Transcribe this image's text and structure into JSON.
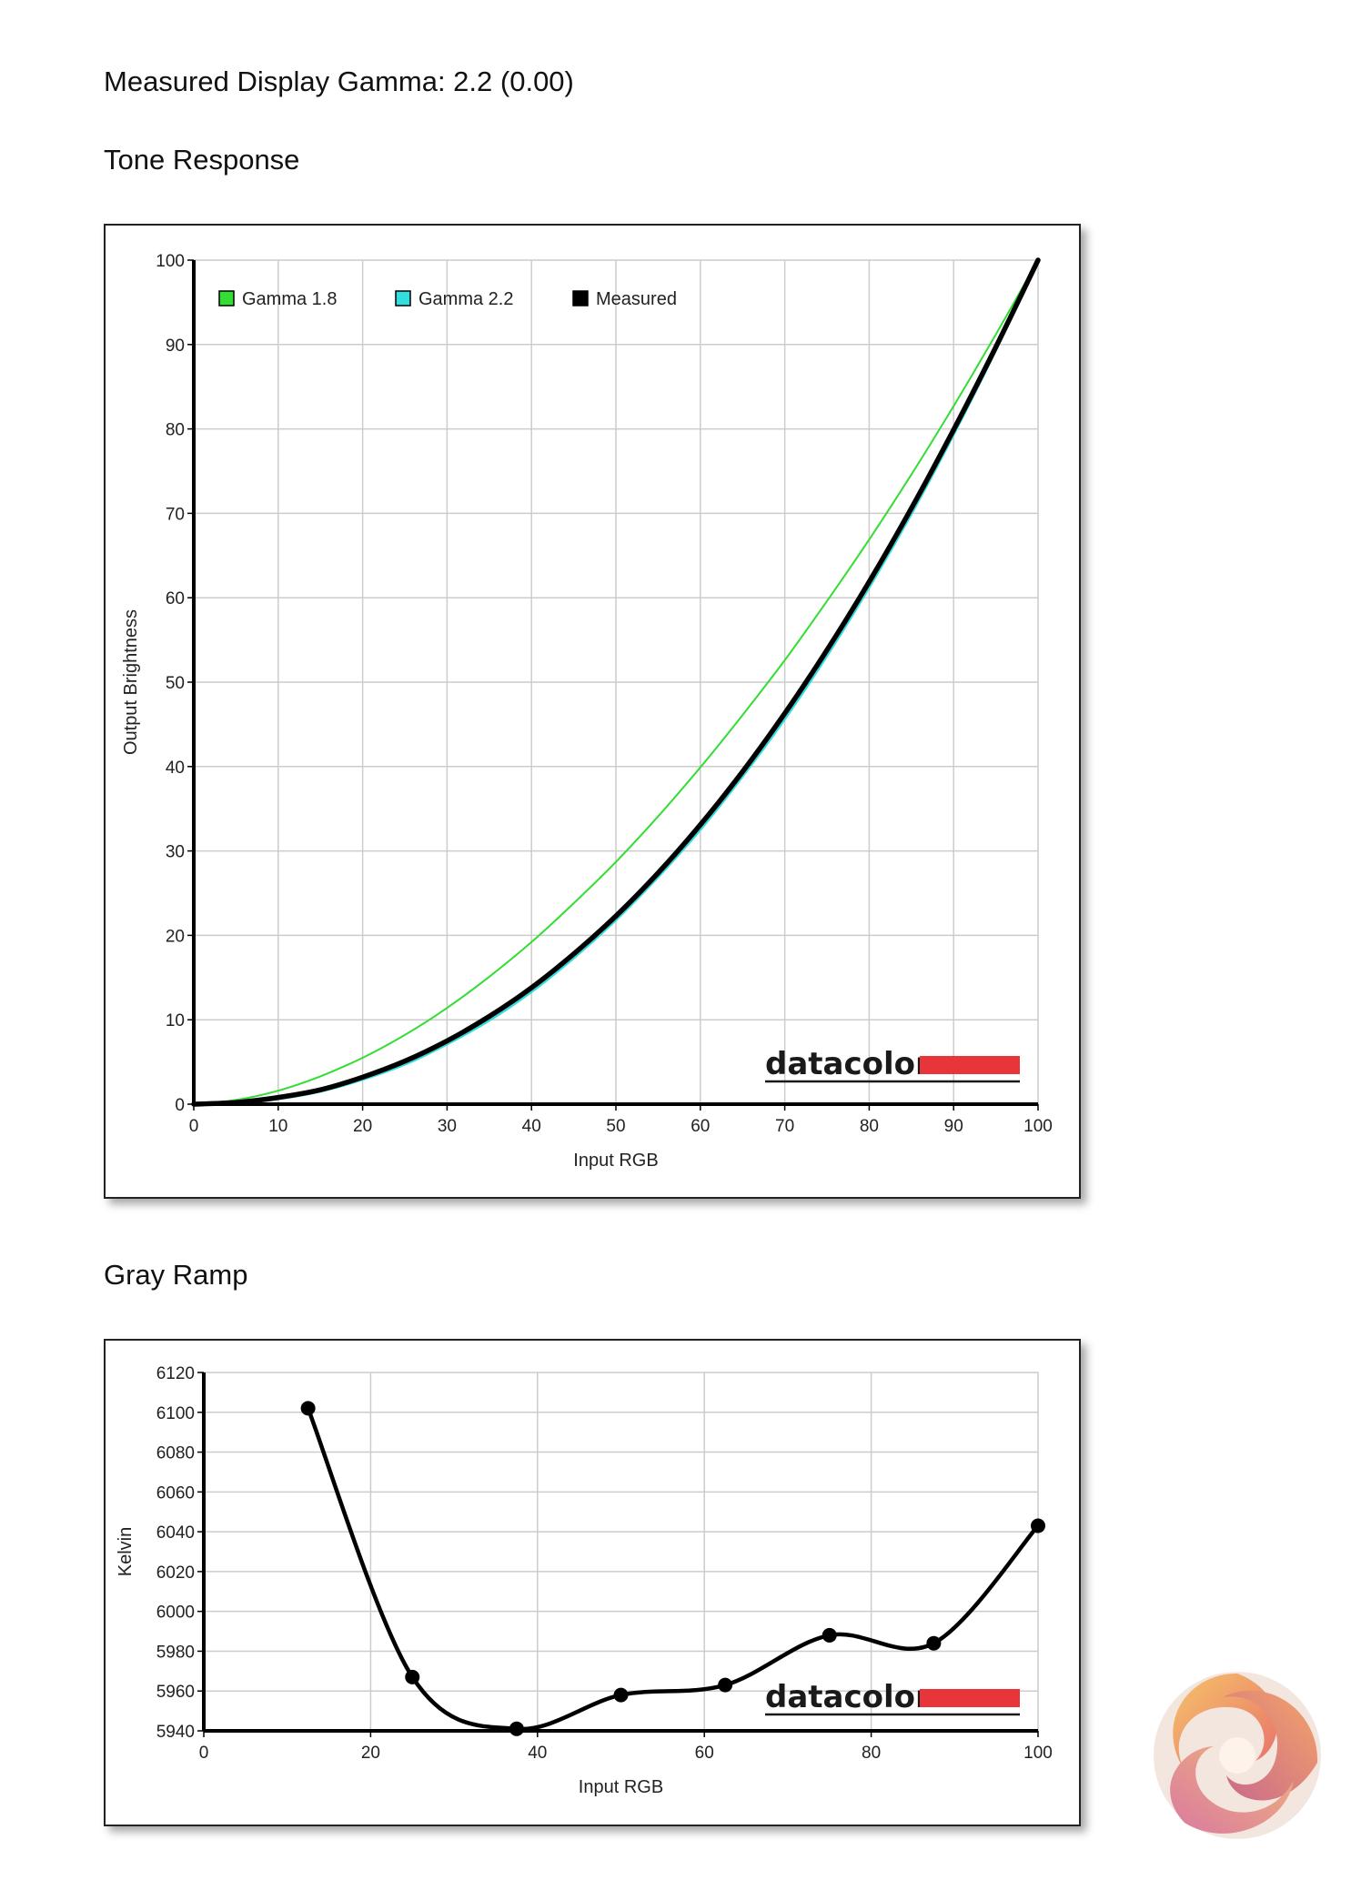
{
  "headings": {
    "gamma": "Measured Display Gamma: 2.2 (0.00)",
    "tone": "Tone Response",
    "gray": "Gray Ramp"
  },
  "chart_data": [
    {
      "type": "line",
      "title": "Tone Response",
      "xlabel": "Input RGB",
      "ylabel": "Output Brightness",
      "xlim": [
        0,
        100
      ],
      "ylim": [
        0,
        100
      ],
      "xticks": [
        0,
        10,
        20,
        30,
        40,
        50,
        60,
        70,
        80,
        90,
        100
      ],
      "yticks": [
        0,
        10,
        20,
        30,
        40,
        50,
        60,
        70,
        80,
        90,
        100
      ],
      "grid": true,
      "legend_position": "top-left",
      "brand": "datacolor",
      "series": [
        {
          "name": "Gamma 1.8",
          "color": "#33dd33",
          "x": [
            0,
            5,
            10,
            15,
            20,
            25,
            30,
            35,
            40,
            45,
            50,
            55,
            60,
            65,
            70,
            75,
            80,
            85,
            90,
            95,
            100
          ],
          "y": [
            0,
            0.5,
            1.6,
            3.3,
            5.5,
            8.2,
            11.4,
            15.1,
            19.2,
            23.8,
            28.7,
            34.1,
            39.9,
            46.1,
            52.6,
            59.6,
            66.9,
            74.6,
            82.7,
            91.2,
            100
          ]
        },
        {
          "name": "Gamma 2.2",
          "color": "#33dddd",
          "x": [
            0,
            5,
            10,
            15,
            20,
            25,
            30,
            35,
            40,
            45,
            50,
            55,
            60,
            65,
            70,
            75,
            80,
            85,
            90,
            95,
            100
          ],
          "y": [
            0,
            0.1,
            0.6,
            1.5,
            2.9,
            4.7,
            7.1,
            9.9,
            13.3,
            17.3,
            21.8,
            26.9,
            32.5,
            38.8,
            45.6,
            53.1,
            61.2,
            69.9,
            79.3,
            89.3,
            100
          ]
        },
        {
          "name": "Measured",
          "color": "#000000",
          "x": [
            0,
            5,
            10,
            15,
            20,
            25,
            30,
            35,
            40,
            45,
            50,
            55,
            60,
            65,
            70,
            75,
            80,
            85,
            90,
            95,
            100
          ],
          "y": [
            0,
            0.2,
            0.8,
            1.7,
            3.2,
            5.1,
            7.5,
            10.4,
            13.8,
            17.8,
            22.3,
            27.4,
            33.1,
            39.4,
            46.3,
            53.8,
            61.9,
            70.6,
            79.9,
            89.7,
            100
          ]
        }
      ]
    },
    {
      "type": "line",
      "title": "Gray Ramp",
      "xlabel": "Input RGB",
      "ylabel": "Kelvin",
      "xlim": [
        0,
        100
      ],
      "ylim": [
        5940,
        6120
      ],
      "xticks": [
        0,
        20,
        40,
        60,
        80,
        100
      ],
      "yticks": [
        5940,
        5960,
        5980,
        6000,
        6020,
        6040,
        6060,
        6080,
        6100,
        6120
      ],
      "grid": true,
      "brand": "datacolor",
      "series": [
        {
          "color": "#000000",
          "x": [
            12.5,
            25,
            37.5,
            50,
            62.5,
            75,
            87.5,
            100
          ],
          "y": [
            6102,
            5967,
            5941,
            5958,
            5963,
            5988,
            5984,
            6043
          ]
        }
      ]
    }
  ],
  "colors": {
    "brand_red": "#e8353a",
    "grid": "#cccccc",
    "axis": "#000000"
  },
  "logo": {
    "icon": "kitguru-swirl-logo"
  }
}
